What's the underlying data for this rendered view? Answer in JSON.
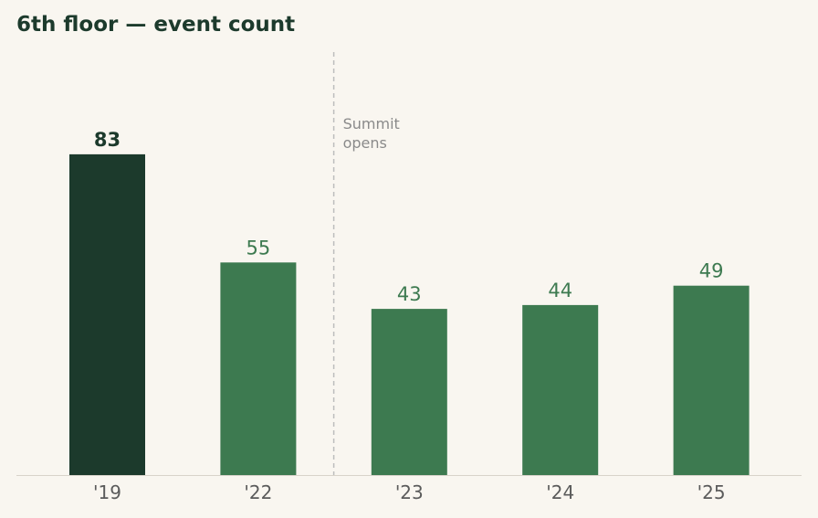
{
  "title": "6th floor — event count",
  "colors": {
    "background": "#f9f6f0",
    "highlight_bar": "#1c3a2c",
    "bar": "#3d7a50",
    "baseline": "#d8d3ca",
    "annotation_line": "#bdbdbd"
  },
  "chart_data": {
    "type": "bar",
    "title": "6th floor — event count",
    "categories": [
      "'19",
      "'22",
      "'23",
      "'24",
      "'25"
    ],
    "values": [
      83,
      55,
      43,
      44,
      49
    ],
    "highlight_index": 0,
    "ylim": [
      0,
      100
    ],
    "grid": false,
    "legend": "none",
    "annotations": [
      {
        "after_category": "'22",
        "lines": [
          "Summit",
          "opens"
        ]
      }
    ]
  }
}
